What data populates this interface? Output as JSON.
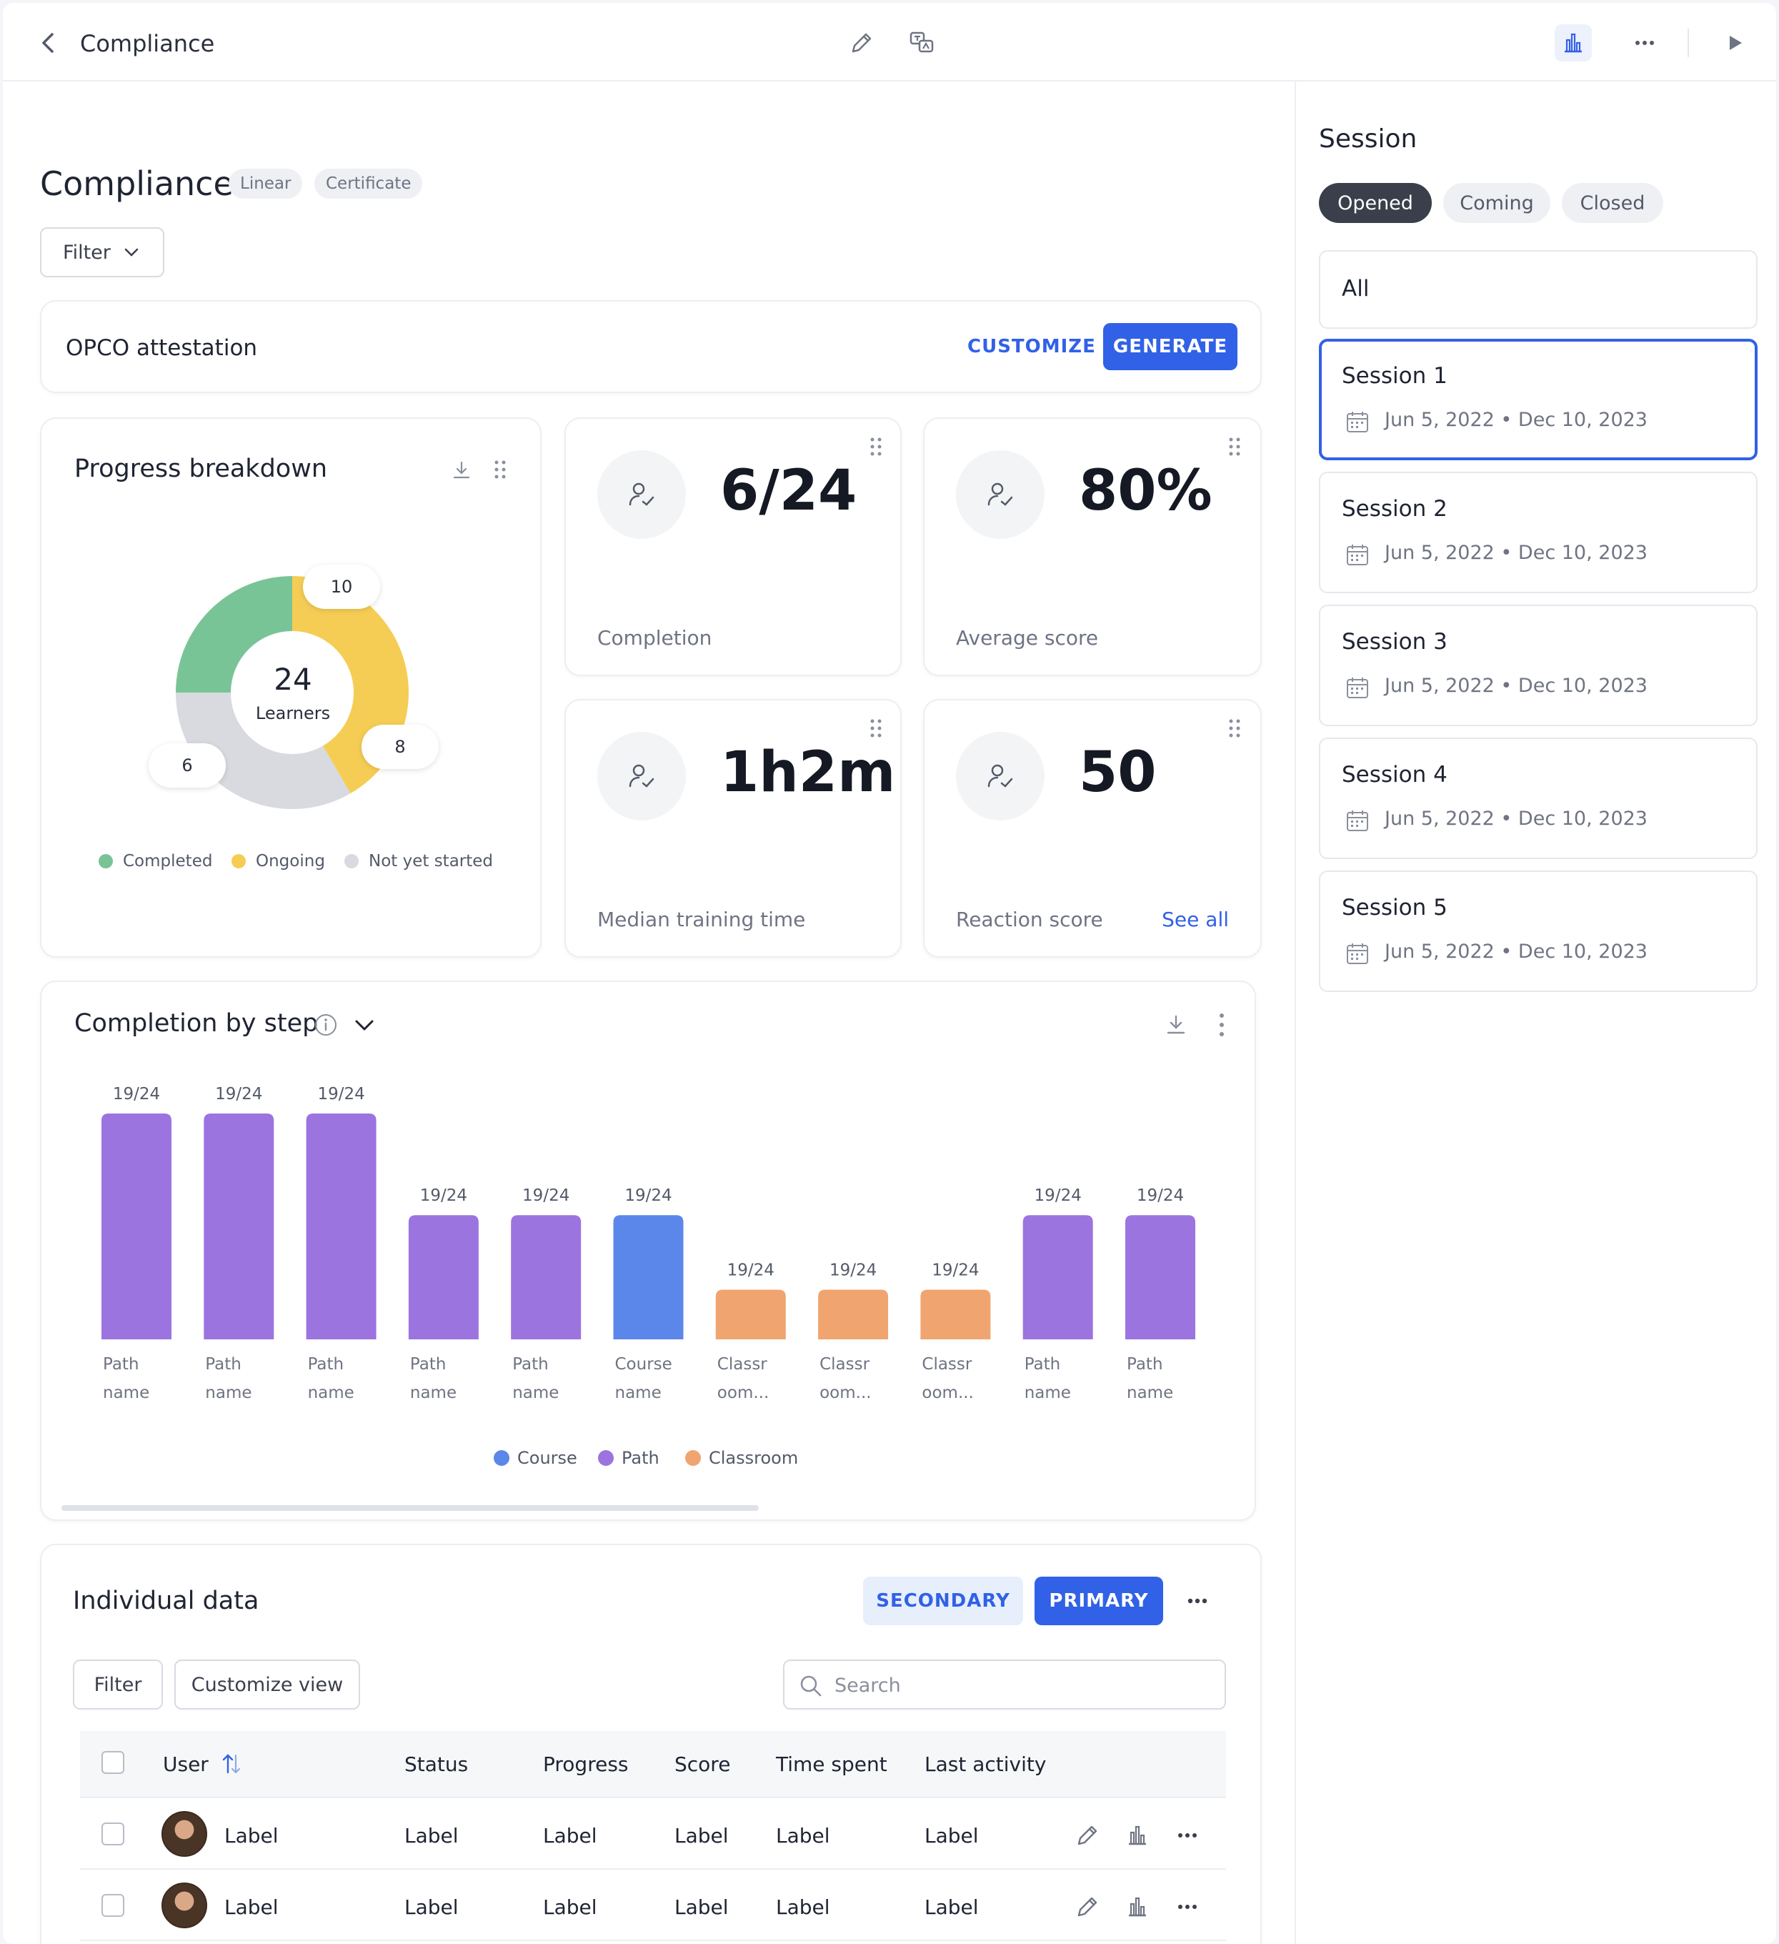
{
  "topbar": {
    "title": "Compliance",
    "icons": [
      "back-chevron-icon",
      "pencil-icon",
      "translate-icon",
      "analytics-icon",
      "more-icon",
      "play-icon"
    ]
  },
  "page": {
    "title": "Compliance",
    "tags": [
      "Linear",
      "Certificate"
    ],
    "filter_label": "Filter"
  },
  "opco": {
    "title": "OPCO attestation",
    "customize_label": "CUSTOMIZE",
    "generate_label": "GENERATE"
  },
  "progress": {
    "title": "Progress breakdown",
    "total": "24",
    "total_label": "Learners",
    "segments": [
      {
        "name": "Completed",
        "value": 6,
        "color": "#79c496"
      },
      {
        "name": "Ongoing",
        "value": 10,
        "color": "#f5cd55"
      },
      {
        "name": "Not yet started",
        "value": 8,
        "color": "#d8dadf"
      }
    ]
  },
  "kpis": [
    {
      "value": "6/24",
      "label": "Completion"
    },
    {
      "value": "80%",
      "label": "Average score"
    },
    {
      "value": "1h2m",
      "label": "Median training time"
    },
    {
      "value": "50",
      "label": "Reaction score",
      "link": "See all"
    }
  ],
  "completion_chart": {
    "title": "Completion by step"
  },
  "chart_data": {
    "type": "bar",
    "title": "Completion by step",
    "categories": [
      [
        "Path",
        "name"
      ],
      [
        "Path",
        "name"
      ],
      [
        "Path",
        "name"
      ],
      [
        "Path",
        "name"
      ],
      [
        "Path",
        "name"
      ],
      [
        "Course",
        "name"
      ],
      [
        "Classr",
        "oom..."
      ],
      [
        "Classr",
        "oom..."
      ],
      [
        "Classr",
        "oom..."
      ],
      [
        "Path",
        "name"
      ],
      [
        "Path",
        "name"
      ]
    ],
    "values": [
      19,
      19,
      19,
      19,
      19,
      19,
      19,
      19,
      19,
      19,
      19
    ],
    "bar_fill": [
      1.0,
      1.0,
      1.0,
      0.55,
      0.55,
      0.55,
      0.22,
      0.22,
      0.22,
      0.55,
      0.55
    ],
    "value_labels": [
      "19/24",
      "19/24",
      "19/24",
      "19/24",
      "19/24",
      "19/24",
      "19/24",
      "19/24",
      "19/24",
      "19/24",
      "19/24"
    ],
    "types": [
      "Path",
      "Path",
      "Path",
      "Path",
      "Path",
      "Course",
      "Classroom",
      "Classroom",
      "Classroom",
      "Path",
      "Path"
    ],
    "legend": [
      {
        "name": "Course",
        "color": "#5b87ea"
      },
      {
        "name": "Path",
        "color": "#9b74e0"
      },
      {
        "name": "Classroom",
        "color": "#f0a46f"
      }
    ]
  },
  "individual": {
    "title": "Individual data",
    "secondary_label": "SECONDARY",
    "primary_label": "PRIMARY",
    "filter_label": "Filter",
    "customize_label": "Customize view",
    "search_placeholder": "Search",
    "columns": [
      "User",
      "Status",
      "Progress",
      "Score",
      "Time spent",
      "Last activity"
    ],
    "rows": [
      [
        "Label",
        "Label",
        "Label",
        "Label",
        "Label",
        "Label"
      ],
      [
        "Label",
        "Label",
        "Label",
        "Label",
        "Label",
        "Label"
      ]
    ]
  },
  "session": {
    "title": "Session",
    "filters": [
      "Opened",
      "Coming",
      "Closed"
    ],
    "all_label": "All",
    "items": [
      {
        "name": "Session 1",
        "dates": "Jun 5, 2022 • Dec 10, 2023"
      },
      {
        "name": "Session 2",
        "dates": "Jun 5, 2022 • Dec 10, 2023"
      },
      {
        "name": "Session 3",
        "dates": "Jun 5, 2022 • Dec 10, 2023"
      },
      {
        "name": "Session 4",
        "dates": "Jun 5, 2022 • Dec 10, 2023"
      },
      {
        "name": "Session 5",
        "dates": "Jun 5, 2022 • Dec 10, 2023"
      }
    ]
  }
}
